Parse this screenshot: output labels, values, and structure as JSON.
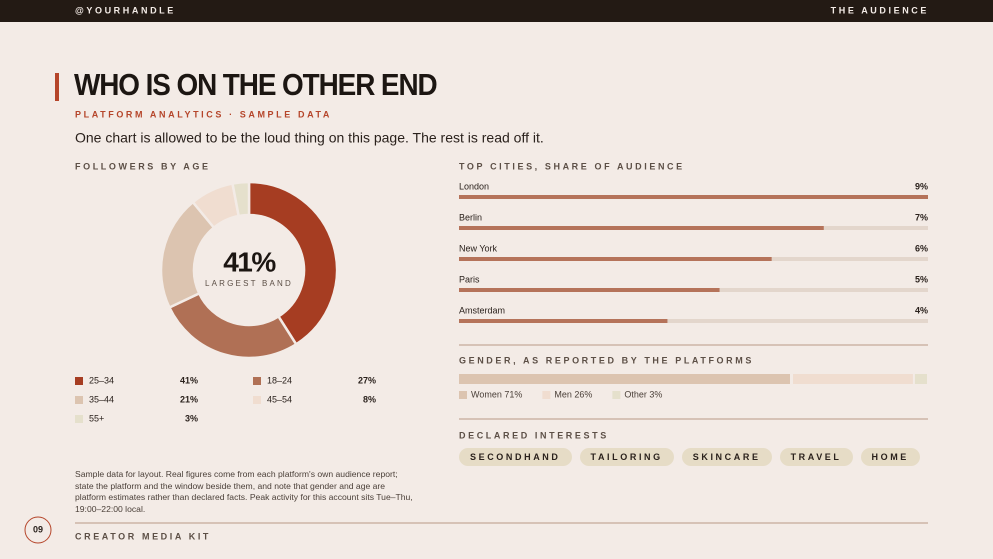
{
  "header": {
    "handle": "@YOURHANDLE",
    "section": "THE AUDIENCE"
  },
  "title": "WHO IS ON THE OTHER END",
  "subtitle": "PLATFORM ANALYTICS · SAMPLE DATA",
  "lede": "One chart is allowed to be the loud thing on this page. The rest is read off it.",
  "chart_data": [
    {
      "type": "donut",
      "title": "FOLLOWERS BY AGE",
      "categories": [
        "25–34",
        "18–24",
        "35–44",
        "45–54",
        "55+"
      ],
      "values": [
        41,
        27,
        21,
        8,
        3
      ],
      "value_labels": [
        "41%",
        "27%",
        "21%",
        "8%",
        "3%"
      ],
      "colors": [
        "#a63d22",
        "#b07055",
        "#dcc4b0",
        "#f0ddd0",
        "#e5e0cc"
      ],
      "center_label": "LARGEST BAND"
    },
    {
      "type": "hbar",
      "title": "TOP CITIES, SHARE OF AUDIENCE",
      "categories": [
        "London",
        "Berlin",
        "New York",
        "Paris",
        "Amsterdam"
      ],
      "values": [
        9,
        7,
        6,
        5,
        4
      ],
      "value_labels": [
        "9%",
        "7%",
        "6%",
        "5%",
        "4%"
      ],
      "color": "#b5735a",
      "track_color": "#e3d6cc",
      "xlim": [
        0,
        9
      ]
    },
    {
      "type": "stacked",
      "title": "GENDER, AS REPORTED BY THE PLATFORMS",
      "categories": [
        "Women",
        "Men",
        "Other"
      ],
      "values": [
        71,
        26,
        3
      ],
      "value_labels": [
        "Women 71%",
        "Men 26%",
        "Other 3%"
      ],
      "colors": [
        "#dcc4b0",
        "#f0ddd0",
        "#e5e0cc"
      ],
      "xlim": [
        0,
        100
      ]
    }
  ],
  "interests": {
    "title": "DECLARED INTERESTS",
    "tags": [
      "SECONDHAND",
      "TAILORING",
      "SKINCARE",
      "TRAVEL",
      "HOME"
    ]
  },
  "footnote": "Sample data for layout. Real figures come from each platform's own audience report; state the platform and the window beside them, and note that gender and age are platform estimates rather than declared facts. Peak activity for this account sits Tue–Thu, 19:00–22:00 local.",
  "footer": {
    "page": "09",
    "label": "CREATOR MEDIA KIT"
  }
}
